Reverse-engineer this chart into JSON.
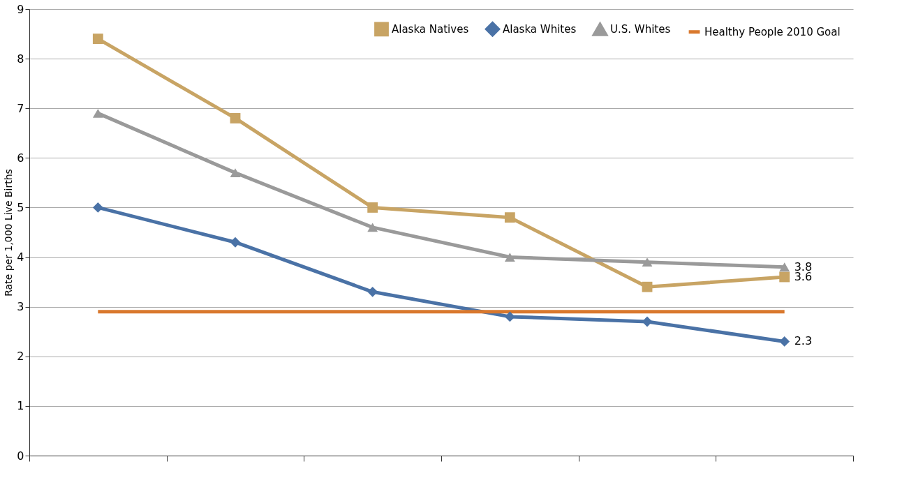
{
  "chart_data": {
    "type": "line",
    "ylabel": "Rate per 1,000 Live Births",
    "categories": [
      null,
      null,
      null,
      null,
      null,
      null
    ],
    "series": [
      {
        "name": "Alaska Natives",
        "color": "#c8a464",
        "marker": "square",
        "values": [
          8.4,
          6.8,
          5.0,
          4.8,
          3.4,
          3.6
        ],
        "value_labels": [
          null,
          null,
          null,
          null,
          null,
          "3.6"
        ]
      },
      {
        "name": "Alaska Whites",
        "color": "#4a72a6",
        "marker": "diamond",
        "values": [
          5.0,
          4.3,
          3.3,
          2.8,
          2.7,
          2.3
        ],
        "value_labels": [
          null,
          null,
          null,
          null,
          null,
          "2.3"
        ]
      },
      {
        "name": "U.S. Whites",
        "color": "#9a9a9a",
        "marker": "triangle",
        "values": [
          6.9,
          5.7,
          4.6,
          4.0,
          3.9,
          3.8
        ],
        "value_labels": [
          null,
          null,
          null,
          null,
          null,
          "3.8"
        ]
      },
      {
        "name": "Healthy People 2010 Goal",
        "color": "#d9782d",
        "marker": "none",
        "values": [
          2.9,
          2.9,
          2.9,
          2.9,
          2.9,
          2.9
        ]
      }
    ],
    "ylim": [
      0,
      9
    ],
    "yticks": [
      0,
      1,
      2,
      3,
      4,
      5,
      6,
      7,
      8,
      9
    ],
    "grid": "y",
    "legend": "top right",
    "tick_labels": "y",
    "line_style": "solid"
  }
}
